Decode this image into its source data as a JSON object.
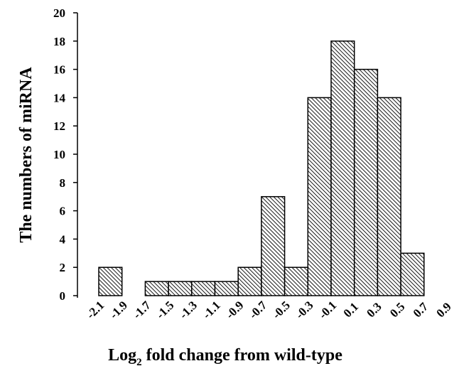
{
  "chart_data": {
    "type": "bar",
    "subtype": "histogram",
    "bin_edges": [
      -2.1,
      -1.9,
      -1.7,
      -1.5,
      -1.3,
      -1.1,
      -0.9,
      -0.7,
      -0.5,
      -0.3,
      -0.1,
      0.1,
      0.3,
      0.5,
      0.7,
      0.9
    ],
    "x_tick_labels": [
      "-2.1",
      "-1.9",
      "-1.7",
      "-1.5",
      "-1.3",
      "-1.1",
      "-0.9",
      "-0.7",
      "-0.5",
      "-0.3",
      "-0.1",
      "0.1",
      "0.3",
      "0.5",
      "0.7",
      "0.9"
    ],
    "counts": [
      2,
      0,
      1,
      1,
      1,
      1,
      2,
      7,
      2,
      14,
      18,
      16,
      14,
      3,
      0
    ],
    "xlabel_main": "Log",
    "xlabel_sub": "2",
    "xlabel_rest": " fold change from wild-type",
    "ylabel": "The numbers of miRNA",
    "ylim": [
      0,
      20
    ],
    "y_ticks": [
      0,
      2,
      4,
      6,
      8,
      10,
      12,
      14,
      16,
      18,
      20
    ],
    "grid": false,
    "legend": "none",
    "bar_fill": "diagonal-hatch",
    "bar_stroke": "#000000"
  }
}
